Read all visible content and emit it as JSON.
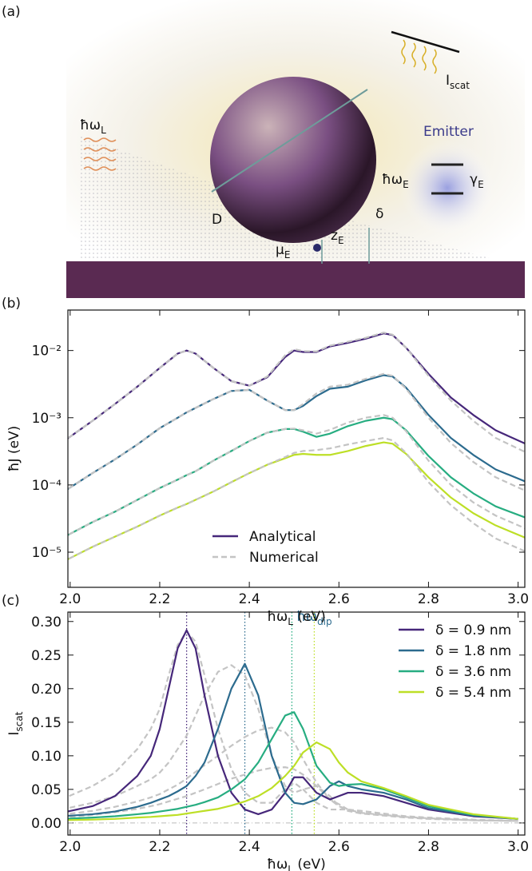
{
  "illustration": {
    "panel_label": "(a)",
    "incident": {
      "text": "ħω",
      "sub": "L"
    },
    "diameter": {
      "text": "D"
    },
    "dipole": {
      "text": "μ",
      "sub": "E"
    },
    "height": {
      "text": "z",
      "sub": "E"
    },
    "gap": {
      "text": "δ"
    },
    "scattered": {
      "text": "I",
      "sub": "scat"
    },
    "emitter_title": "Emitter",
    "emitter_energy": {
      "text": "ħω",
      "sub": "E"
    },
    "emitter_decay": {
      "text": "γ",
      "sub": "E"
    }
  },
  "chart_data": [
    {
      "type": "line",
      "panel_label": "(b)",
      "log_y": true,
      "xlabel": {
        "text": "ħω",
        "sub": "L",
        "suffix": " (eV)"
      },
      "ylabel": {
        "text": "ħJ (eV)"
      },
      "xlim": [
        1.995,
        3.015
      ],
      "xticks": [
        {
          "value": 2,
          "label": "2.0"
        },
        {
          "value": 2.2,
          "label": "2.2"
        },
        {
          "value": 2.4,
          "label": "2.4"
        },
        {
          "value": 2.6,
          "label": "2.6"
        },
        {
          "value": 2.8,
          "label": "2.8"
        },
        {
          "value": 3,
          "label": "3.0"
        }
      ],
      "ylim": [
        3e-06,
        0.04
      ],
      "yticks": [
        {
          "value": 1e-05,
          "label": "10⁻⁵"
        },
        {
          "value": 0.0001,
          "label": "10⁻⁴"
        },
        {
          "value": 0.001,
          "label": "10⁻³"
        },
        {
          "value": 0.01,
          "label": "10⁻²"
        }
      ],
      "x": [
        1.98,
        2.05,
        2.1,
        2.15,
        2.2,
        2.24,
        2.26,
        2.28,
        2.32,
        2.36,
        2.4,
        2.44,
        2.48,
        2.5,
        2.52,
        2.55,
        2.58,
        2.62,
        2.66,
        2.7,
        2.72,
        2.75,
        2.8,
        2.85,
        2.9,
        2.95,
        3.02
      ],
      "legend": {
        "loc": "lower center",
        "entries": [
          {
            "name": "Analytical",
            "color": "#46277a",
            "linestyle": "solid"
          },
          {
            "name": "Numerical",
            "color": "#c4c4c4",
            "linestyle": "dashed"
          }
        ]
      },
      "series": [
        {
          "color": "#46277a",
          "linestyle": "solid",
          "values": [
            0.00042,
            0.0009,
            0.0016,
            0.0029,
            0.0055,
            0.009,
            0.01,
            0.009,
            0.0055,
            0.0035,
            0.003,
            0.004,
            0.008,
            0.01,
            0.0095,
            0.0095,
            0.0115,
            0.013,
            0.015,
            0.018,
            0.017,
            0.011,
            0.0045,
            0.002,
            0.0011,
            0.00065,
            0.0004
          ]
        },
        {
          "color": "#2c6b8e",
          "linestyle": "solid",
          "values": [
            7.5e-05,
            0.00015,
            0.00024,
            0.0004,
            0.0007,
            0.001,
            0.0012,
            0.0014,
            0.0019,
            0.0025,
            0.0026,
            0.0018,
            0.0013,
            0.0013,
            0.0015,
            0.0021,
            0.0027,
            0.0029,
            0.0036,
            0.0043,
            0.0041,
            0.0028,
            0.0011,
            0.0005,
            0.00028,
            0.00017,
            0.00011
          ]
        },
        {
          "color": "#27ad81",
          "linestyle": "solid",
          "values": [
            1.6e-05,
            2.8e-05,
            4e-05,
            6e-05,
            9e-05,
            0.00012,
            0.00014,
            0.00016,
            0.00023,
            0.00032,
            0.00045,
            0.0006,
            0.00068,
            0.00068,
            0.00062,
            0.00052,
            0.00058,
            0.00075,
            0.0009,
            0.001,
            0.00095,
            0.00065,
            0.00027,
            0.00013,
            7.5e-05,
            4.8e-05,
            3.2e-05
          ]
        },
        {
          "color": "#bddf26",
          "linestyle": "solid",
          "values": [
            7e-06,
            1.2e-05,
            1.7e-05,
            2.4e-05,
            3.5e-05,
            4.6e-05,
            5.2e-05,
            6e-05,
            8e-05,
            0.00011,
            0.00015,
            0.0002,
            0.00025,
            0.00028,
            0.00029,
            0.00028,
            0.00028,
            0.00032,
            0.00038,
            0.00043,
            0.00041,
            0.00029,
            0.00013,
            6.5e-05,
            3.8e-05,
            2.5e-05,
            1.6e-05
          ]
        },
        {
          "color": "#c4c4c4",
          "linestyle": "dashed",
          "values": [
            0.00042,
            0.0009,
            0.0016,
            0.0029,
            0.0055,
            0.009,
            0.01,
            0.009,
            0.0055,
            0.0035,
            0.003,
            0.0041,
            0.0085,
            0.0105,
            0.0098,
            0.0097,
            0.0118,
            0.0135,
            0.0155,
            0.0185,
            0.0172,
            0.011,
            0.0042,
            0.0018,
            0.0009,
            0.0005,
            0.0003
          ]
        },
        {
          "color": "#c4c4c4",
          "linestyle": "dashed",
          "values": [
            7.5e-05,
            0.00015,
            0.00024,
            0.0004,
            0.0007,
            0.001,
            0.0012,
            0.0014,
            0.0019,
            0.0025,
            0.0026,
            0.0018,
            0.0013,
            0.0013,
            0.0016,
            0.0023,
            0.0029,
            0.0031,
            0.0038,
            0.0045,
            0.0042,
            0.0027,
            0.001,
            0.00042,
            0.00022,
            0.00013,
            8e-05
          ]
        },
        {
          "color": "#c4c4c4",
          "linestyle": "dashed",
          "values": [
            1.6e-05,
            2.8e-05,
            4e-05,
            6e-05,
            9e-05,
            0.00012,
            0.00014,
            0.00016,
            0.00023,
            0.00032,
            0.00045,
            0.0006,
            0.00068,
            0.00069,
            0.00065,
            0.00058,
            0.00066,
            0.00085,
            0.001,
            0.0011,
            0.001,
            0.00063,
            0.00023,
            0.0001,
            5.5e-05,
            3.5e-05,
            2.2e-05
          ]
        },
        {
          "color": "#c4c4c4",
          "linestyle": "dashed",
          "values": [
            7e-06,
            1.2e-05,
            1.7e-05,
            2.4e-05,
            3.5e-05,
            4.6e-05,
            5.2e-05,
            6e-05,
            8e-05,
            0.00011,
            0.00015,
            0.0002,
            0.00026,
            0.0003,
            0.00032,
            0.00033,
            0.00035,
            0.0004,
            0.00045,
            0.0005,
            0.00046,
            0.0003,
            0.00011,
            5e-05,
            2.7e-05,
            1.6e-05,
            1e-05
          ]
        }
      ]
    },
    {
      "type": "line",
      "panel_label": "(c)",
      "log_y": false,
      "xlabel": {
        "text": "ħω",
        "sub": "L",
        "suffix": " (eV)"
      },
      "ylabel": {
        "text": "I",
        "sub": "scat"
      },
      "xlim": [
        1.995,
        3.015
      ],
      "xticks": [
        {
          "value": 2,
          "label": "2.0"
        },
        {
          "value": 2.2,
          "label": "2.2"
        },
        {
          "value": 2.4,
          "label": "2.4"
        },
        {
          "value": 2.6,
          "label": "2.6"
        },
        {
          "value": 2.8,
          "label": "2.8"
        },
        {
          "value": 3,
          "label": "3.0"
        }
      ],
      "ylim": [
        -0.018,
        0.314
      ],
      "yticks": [
        {
          "value": 0,
          "label": "0.00"
        },
        {
          "value": 0.05,
          "label": "0.05"
        },
        {
          "value": 0.1,
          "label": "0.10"
        },
        {
          "value": 0.15,
          "label": "0.15"
        },
        {
          "value": 0.2,
          "label": "0.20"
        },
        {
          "value": 0.25,
          "label": "0.25"
        },
        {
          "value": 0.3,
          "label": "0.30"
        }
      ],
      "x": [
        1.98,
        2.05,
        2.1,
        2.15,
        2.18,
        2.2,
        2.22,
        2.24,
        2.26,
        2.28,
        2.3,
        2.33,
        2.36,
        2.39,
        2.42,
        2.45,
        2.48,
        2.5,
        2.52,
        2.55,
        2.58,
        2.6,
        2.62,
        2.65,
        2.7,
        2.75,
        2.8,
        2.9,
        3.0
      ],
      "hline": 0,
      "vlines": [
        {
          "x": 2.26,
          "color": "#46277a"
        },
        {
          "x": 2.39,
          "color": "#2c6b8e"
        },
        {
          "x": 2.495,
          "color": "#27ad81"
        },
        {
          "x": 2.545,
          "color": "#bddf26"
        }
      ],
      "annotation": {
        "text": "ħω",
        "sub": "dip",
        "color": "#2c6b8e"
      },
      "legend": {
        "loc": "upper right"
      },
      "series": [
        {
          "color": "#c4c4c4",
          "linestyle": "dashed",
          "values": [
            0.035,
            0.055,
            0.075,
            0.11,
            0.14,
            0.17,
            0.22,
            0.265,
            0.285,
            0.27,
            0.22,
            0.14,
            0.08,
            0.045,
            0.03,
            0.03,
            0.05,
            0.06,
            0.05,
            0.03,
            0.02,
            0.02,
            0.02,
            0.018,
            0.014,
            0.01,
            0.008,
            0.005,
            0.003
          ]
        },
        {
          "color": "#c4c4c4",
          "linestyle": "dashed",
          "values": [
            0.02,
            0.03,
            0.04,
            0.055,
            0.065,
            0.075,
            0.09,
            0.11,
            0.13,
            0.16,
            0.19,
            0.225,
            0.235,
            0.22,
            0.17,
            0.1,
            0.055,
            0.045,
            0.05,
            0.055,
            0.04,
            0.025,
            0.02,
            0.015,
            0.012,
            0.009,
            0.007,
            0.004,
            0.003
          ]
        },
        {
          "color": "#c4c4c4",
          "linestyle": "dashed",
          "values": [
            0.012,
            0.018,
            0.024,
            0.032,
            0.038,
            0.043,
            0.05,
            0.057,
            0.066,
            0.076,
            0.086,
            0.1,
            0.115,
            0.128,
            0.138,
            0.142,
            0.135,
            0.12,
            0.095,
            0.06,
            0.035,
            0.028,
            0.02,
            0.015,
            0.012,
            0.009,
            0.007,
            0.004,
            0.003
          ]
        },
        {
          "color": "#c4c4c4",
          "linestyle": "dashed",
          "values": [
            0.008,
            0.012,
            0.016,
            0.021,
            0.025,
            0.028,
            0.032,
            0.036,
            0.04,
            0.045,
            0.05,
            0.058,
            0.066,
            0.072,
            0.078,
            0.082,
            0.083,
            0.08,
            0.072,
            0.055,
            0.035,
            0.025,
            0.018,
            0.014,
            0.011,
            0.008,
            0.006,
            0.004,
            0.003
          ]
        },
        {
          "name": "δ = 0.9 nm",
          "color": "#46277a",
          "linestyle": "solid",
          "values": [
            0.015,
            0.025,
            0.04,
            0.07,
            0.1,
            0.14,
            0.2,
            0.26,
            0.287,
            0.26,
            0.19,
            0.1,
            0.045,
            0.02,
            0.013,
            0.02,
            0.045,
            0.068,
            0.068,
            0.045,
            0.035,
            0.04,
            0.045,
            0.045,
            0.04,
            0.03,
            0.02,
            0.01,
            0.006
          ]
        },
        {
          "name": "δ = 1.8 nm",
          "color": "#2c6b8e",
          "linestyle": "solid",
          "values": [
            0.01,
            0.013,
            0.017,
            0.024,
            0.03,
            0.035,
            0.04,
            0.047,
            0.055,
            0.07,
            0.09,
            0.14,
            0.2,
            0.237,
            0.19,
            0.1,
            0.045,
            0.03,
            0.028,
            0.035,
            0.055,
            0.062,
            0.055,
            0.05,
            0.045,
            0.035,
            0.022,
            0.011,
            0.006
          ]
        },
        {
          "name": "δ = 3.6 nm",
          "color": "#27ad81",
          "linestyle": "solid",
          "values": [
            0.006,
            0.008,
            0.01,
            0.013,
            0.015,
            0.017,
            0.019,
            0.021,
            0.024,
            0.027,
            0.031,
            0.038,
            0.05,
            0.065,
            0.09,
            0.125,
            0.16,
            0.165,
            0.14,
            0.085,
            0.06,
            0.055,
            0.057,
            0.058,
            0.05,
            0.038,
            0.025,
            0.012,
            0.006
          ]
        },
        {
          "name": "δ = 5.4 nm",
          "color": "#bddf26",
          "linestyle": "solid",
          "values": [
            0.004,
            0.005,
            0.006,
            0.008,
            0.009,
            0.01,
            0.011,
            0.012,
            0.014,
            0.016,
            0.018,
            0.021,
            0.026,
            0.032,
            0.04,
            0.052,
            0.07,
            0.085,
            0.105,
            0.12,
            0.11,
            0.09,
            0.075,
            0.062,
            0.052,
            0.04,
            0.027,
            0.013,
            0.006
          ]
        }
      ]
    }
  ]
}
